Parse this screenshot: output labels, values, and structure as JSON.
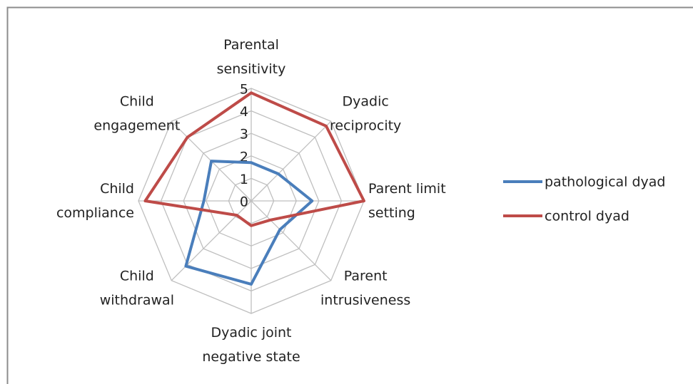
{
  "chart_data": {
    "type": "radar",
    "categories": [
      "Parental sensitivity",
      "Dyadic reciprocity",
      "Parent limit setting",
      "Parent intrusiveness",
      "Dyadic joint negative state",
      "Child withdrawal",
      "Child compliance",
      "Child engagement"
    ],
    "series": [
      {
        "name": "pathological dyad",
        "color": "#4a7ebb",
        "values": [
          1.7,
          1.7,
          2.7,
          1.8,
          3.7,
          4.1,
          2.1,
          2.5
        ]
      },
      {
        "name": "control dyad",
        "color": "#be4b48",
        "values": [
          4.8,
          4.7,
          5,
          1.2,
          1.1,
          0.9,
          4.7,
          4.0
        ]
      }
    ],
    "ylim": [
      0,
      5
    ],
    "yticks": [
      0,
      1,
      2,
      3,
      4,
      5
    ],
    "grid": true,
    "legend": "right"
  }
}
